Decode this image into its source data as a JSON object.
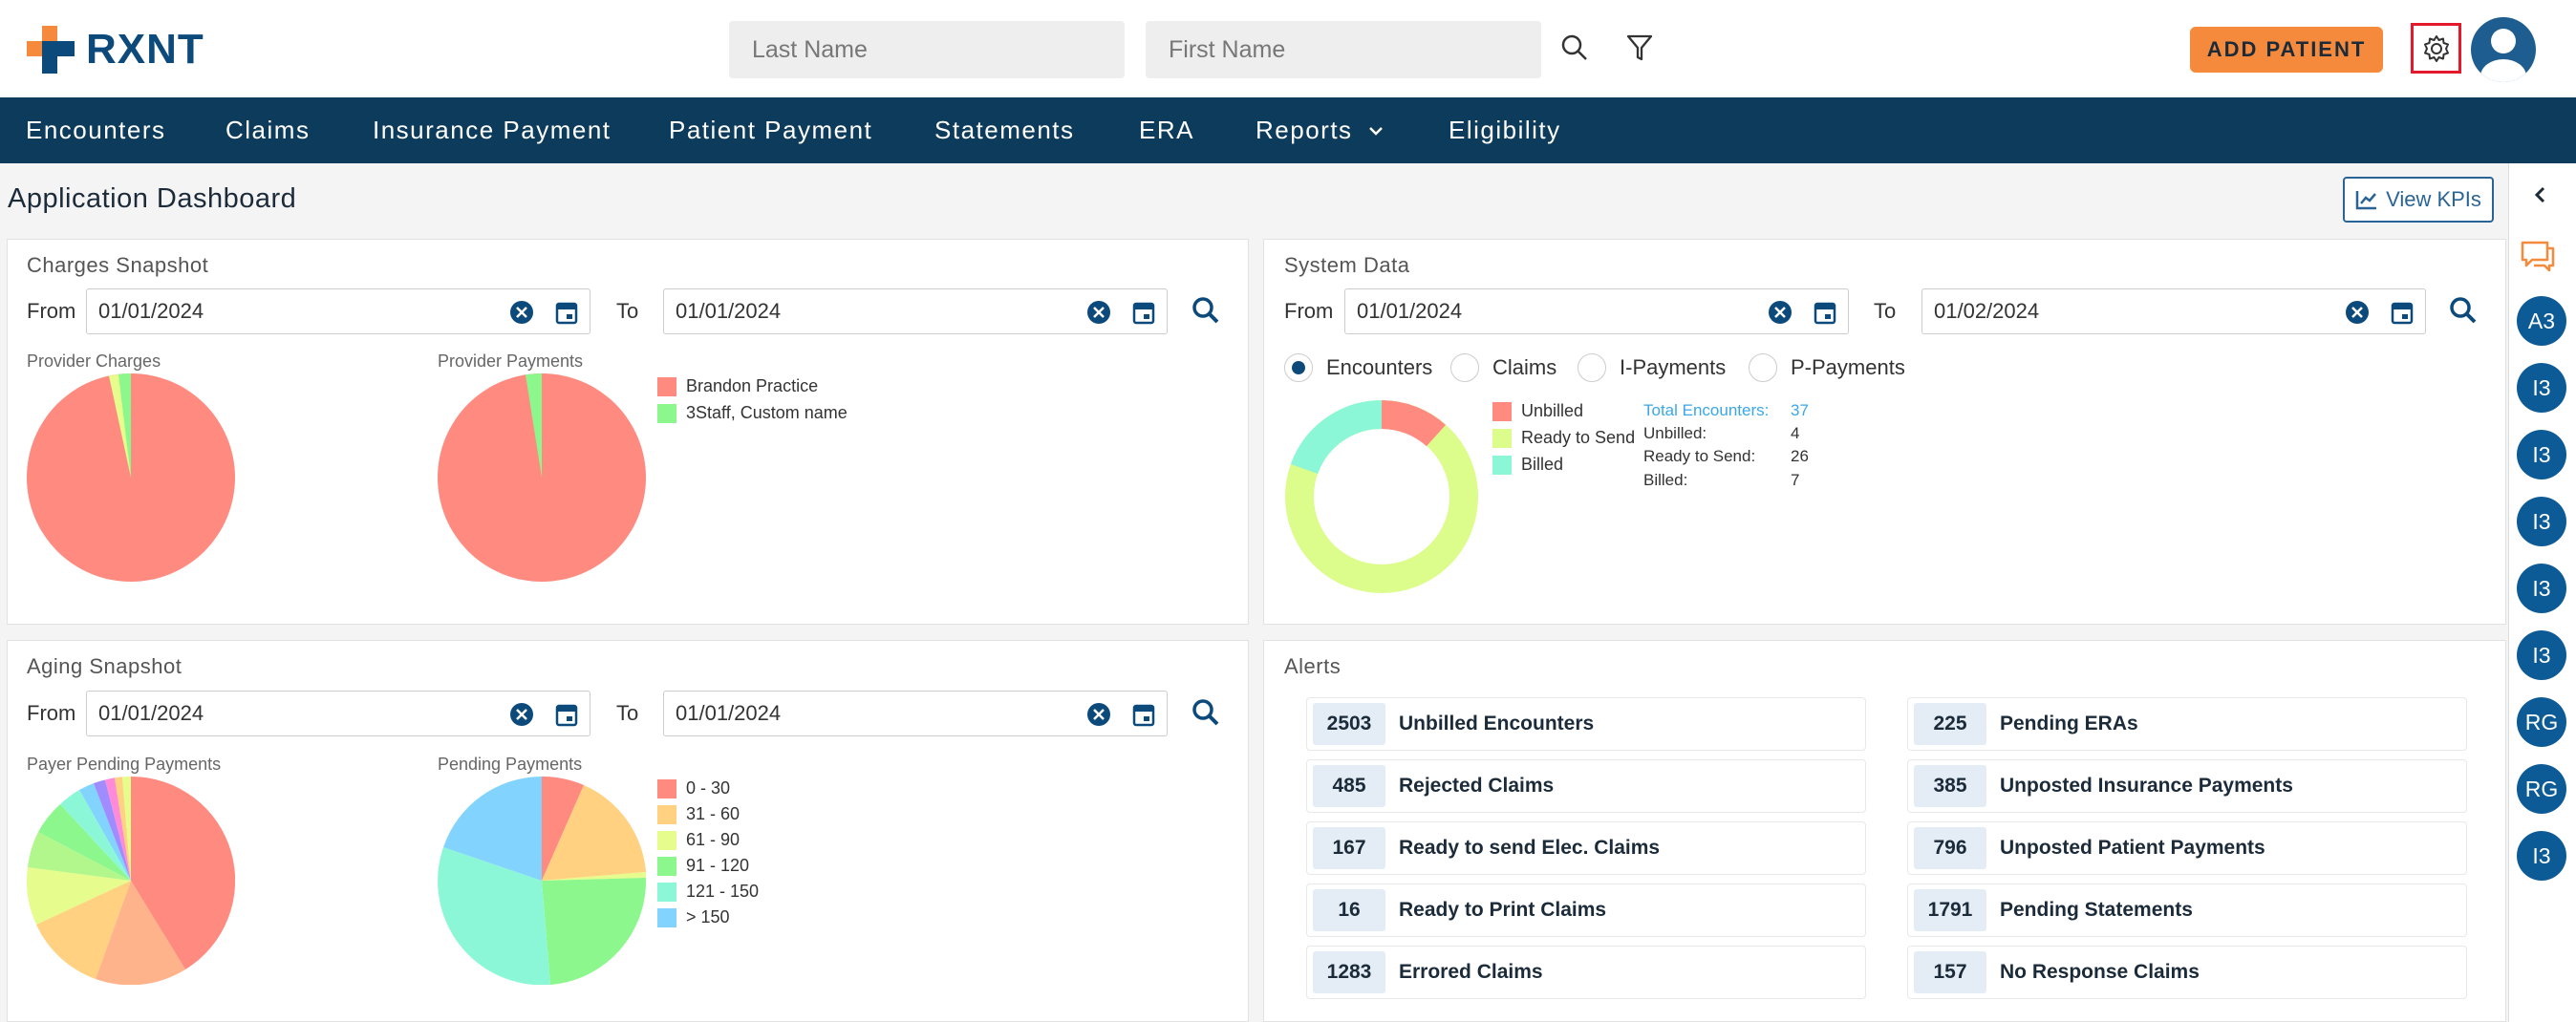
{
  "app": {
    "brand": "RXNT"
  },
  "header": {
    "last_name_placeholder": "Last Name",
    "first_name_placeholder": "First Name",
    "add_patient_label": "ADD PATIENT"
  },
  "nav": {
    "items": [
      "Encounters",
      "Claims",
      "Insurance Payment",
      "Patient Payment",
      "Statements",
      "ERA",
      "Reports",
      "Eligibility"
    ]
  },
  "dashboard": {
    "title": "Application Dashboard",
    "view_kpis_label": "View KPIs"
  },
  "common": {
    "from_label": "From",
    "to_label": "To"
  },
  "charges_snapshot": {
    "title": "Charges Snapshot",
    "from_date": "01/01/2024",
    "to_date": "01/01/2024",
    "provider_charges_label": "Provider Charges",
    "provider_payments_label": "Provider Payments",
    "legend": [
      {
        "label": "Brandon Practice",
        "color": "#ff8a80"
      },
      {
        "label": "3Staff, Custom name",
        "color": "#8cf78c"
      }
    ]
  },
  "system_data": {
    "title": "System Data",
    "from_date": "01/01/2024",
    "to_date": "01/02/2024",
    "radios": [
      {
        "label": "Encounters",
        "selected": true
      },
      {
        "label": "Claims",
        "selected": false
      },
      {
        "label": "I-Payments",
        "selected": false
      },
      {
        "label": "P-Payments",
        "selected": false
      }
    ],
    "legend": [
      {
        "label": "Unbilled",
        "color": "#ff8a80"
      },
      {
        "label": "Ready to Send",
        "color": "#dcfc8c"
      },
      {
        "label": "Billed",
        "color": "#8cf7d6"
      }
    ],
    "stats": {
      "total_label": "Total Encounters:",
      "total_value": "37",
      "unbilled_label": "Unbilled:",
      "unbilled_value": "4",
      "ready_label": "Ready to Send:",
      "ready_value": "26",
      "billed_label": "Billed:",
      "billed_value": "7"
    }
  },
  "aging_snapshot": {
    "title": "Aging Snapshot",
    "from_date": "01/01/2024",
    "to_date": "01/01/2024",
    "payer_pending_label": "Payer Pending Payments",
    "pending_payments_label": "Pending Payments",
    "legend": [
      {
        "label": "0 - 30",
        "color": "#ff8a80"
      },
      {
        "label": "31 - 60",
        "color": "#ffd180"
      },
      {
        "label": "61 - 90",
        "color": "#e6fc8c"
      },
      {
        "label": "91 - 120",
        "color": "#8cf78c"
      },
      {
        "label": "121 - 150",
        "color": "#8cf7d6"
      },
      {
        "label": "> 150",
        "color": "#82d4ff"
      }
    ]
  },
  "alerts": {
    "title": "Alerts",
    "left": [
      {
        "count": "2503",
        "label": "Unbilled Encounters"
      },
      {
        "count": "485",
        "label": "Rejected Claims"
      },
      {
        "count": "167",
        "label": "Ready to send Elec. Claims"
      },
      {
        "count": "16",
        "label": "Ready to Print Claims"
      },
      {
        "count": "1283",
        "label": "Errored Claims"
      }
    ],
    "right": [
      {
        "count": "225",
        "label": "Pending ERAs"
      },
      {
        "count": "385",
        "label": "Unposted Insurance Payments"
      },
      {
        "count": "796",
        "label": "Unposted Patient Payments"
      },
      {
        "count": "1791",
        "label": "Pending Statements"
      },
      {
        "count": "157",
        "label": "No Response Claims"
      }
    ]
  },
  "rail": {
    "badges": [
      "A3",
      "I3",
      "I3",
      "I3",
      "I3",
      "I3",
      "RG",
      "RG",
      "I3"
    ]
  }
}
